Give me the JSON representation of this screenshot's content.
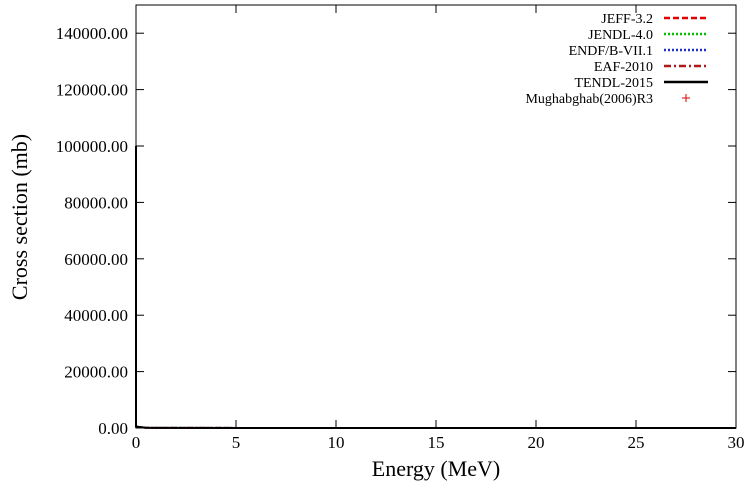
{
  "chart_data": {
    "type": "line",
    "title": "",
    "xlabel": "Energy (MeV)",
    "ylabel": "Cross section (mb)",
    "xlim": [
      0,
      30
    ],
    "ylim": [
      0,
      150000
    ],
    "xticks": [
      0,
      5,
      10,
      15,
      20,
      25,
      30
    ],
    "xtick_labels": [
      "0",
      "5",
      "10",
      "15",
      "20",
      "25",
      "30"
    ],
    "yticks": [
      0,
      20000,
      40000,
      60000,
      80000,
      100000,
      120000,
      140000
    ],
    "ytick_labels": [
      "0.00",
      "20000.00",
      "40000.00",
      "60000.00",
      "80000.00",
      "100000.00",
      "120000.00",
      "140000.00"
    ],
    "grid": false,
    "legend_position": "top-right",
    "series": [
      {
        "name": "JEFF-3.2",
        "color": "#e00000",
        "dash": "dashed",
        "x": [
          0,
          0.0001,
          0.5,
          1,
          5,
          10,
          15,
          20,
          25,
          30
        ],
        "y": [
          100000,
          500,
          80,
          40,
          20,
          10,
          6,
          4,
          3,
          2
        ]
      },
      {
        "name": "JENDL-4.0",
        "color": "#00c000",
        "dash": "dotted",
        "x": [
          0,
          0.0001,
          0.5,
          1,
          5,
          10,
          15,
          20,
          25,
          30
        ],
        "y": [
          100000,
          500,
          80,
          40,
          20,
          10,
          6,
          4,
          3,
          2
        ]
      },
      {
        "name": "ENDF/B-VII.1",
        "color": "#2030d0",
        "dash": "dotted",
        "x": [
          0,
          0.0001,
          0.5,
          1,
          5,
          10,
          15,
          20,
          25,
          30
        ],
        "y": [
          100000,
          500,
          80,
          40,
          20,
          10,
          6,
          4,
          3,
          2
        ]
      },
      {
        "name": "EAF-2010",
        "color": "#b01818",
        "dash": "dashdot",
        "x": [
          0,
          0.0001,
          0.5,
          1,
          5,
          10,
          15,
          20,
          25,
          30
        ],
        "y": [
          100000,
          500,
          80,
          40,
          20,
          10,
          6,
          4,
          3,
          2
        ]
      },
      {
        "name": "TENDL-2015",
        "color": "#000000",
        "dash": "solid",
        "x": [
          0,
          0.0001,
          0.5,
          1,
          5,
          10,
          15,
          20,
          25,
          30
        ],
        "y": [
          100000,
          500,
          80,
          40,
          20,
          10,
          6,
          4,
          3,
          2
        ]
      },
      {
        "name": "Mughabghab(2006)R3",
        "color": "#e00000",
        "dash": "points",
        "x": [],
        "y": []
      }
    ]
  }
}
